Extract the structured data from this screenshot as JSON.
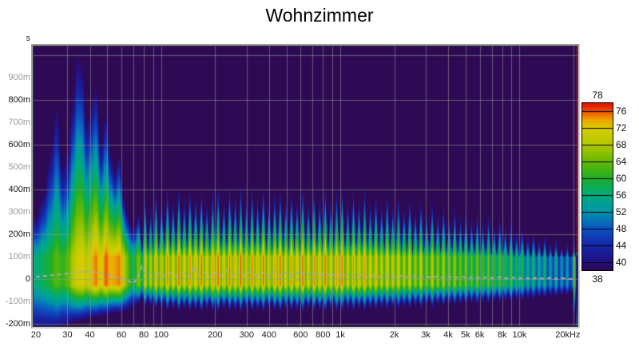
{
  "chart_data": {
    "type": "heatmap",
    "subtype": "spectrogram",
    "title": "Wohnzimmer",
    "x_axis": {
      "scale": "log",
      "unit": "Hz",
      "min_hz": 20,
      "max_hz": 20000,
      "ticks": [
        {
          "label": "20",
          "f": 20
        },
        {
          "label": "30",
          "f": 30
        },
        {
          "label": "40",
          "f": 40
        },
        {
          "label": "60",
          "f": 60
        },
        {
          "label": "80",
          "f": 80
        },
        {
          "label": "100",
          "f": 100
        },
        {
          "label": "200",
          "f": 200
        },
        {
          "label": "300",
          "f": 300
        },
        {
          "label": "400",
          "f": 400
        },
        {
          "label": "600",
          "f": 600
        },
        {
          "label": "800",
          "f": 800
        },
        {
          "label": "1k",
          "f": 1000
        },
        {
          "label": "2k",
          "f": 2000
        },
        {
          "label": "3k",
          "f": 3000
        },
        {
          "label": "4k",
          "f": 4000
        },
        {
          "label": "5k",
          "f": 5000
        },
        {
          "label": "6k",
          "f": 6000
        },
        {
          "label": "8k",
          "f": 8000
        },
        {
          "label": "10k",
          "f": 10000
        },
        {
          "label": "20kHz",
          "f": 20000
        }
      ],
      "gridlines_hz": [
        30,
        40,
        50,
        60,
        70,
        80,
        90,
        100,
        200,
        300,
        400,
        500,
        600,
        700,
        800,
        900,
        1000,
        2000,
        3000,
        4000,
        5000,
        6000,
        7000,
        8000,
        9000,
        10000,
        20000
      ]
    },
    "y_axis": {
      "unit_label": "s",
      "min_ms": -210,
      "max_ms": 1040,
      "ticks": [
        {
          "label": "900m",
          "t": 900,
          "major": false
        },
        {
          "label": "800m",
          "t": 800,
          "major": true
        },
        {
          "label": "700m",
          "t": 700,
          "major": false
        },
        {
          "label": "600m",
          "t": 600,
          "major": true
        },
        {
          "label": "500m",
          "t": 500,
          "major": false
        },
        {
          "label": "400m",
          "t": 400,
          "major": true
        },
        {
          "label": "300m",
          "t": 300,
          "major": false
        },
        {
          "label": "200m",
          "t": 200,
          "major": true
        },
        {
          "label": "100m",
          "t": 100,
          "major": false
        },
        {
          "label": "0",
          "t": 0,
          "major": true
        },
        {
          "label": "-100m",
          "t": -100,
          "major": false
        },
        {
          "label": "-200m",
          "t": -200,
          "major": true
        }
      ],
      "gridlines_ms": [
        1000,
        800,
        600,
        400,
        200,
        0,
        -200
      ]
    },
    "colorbar": {
      "unit": "dB",
      "min_db": 38,
      "max_db": 78,
      "top_label": "78",
      "bottom_label": "38",
      "side_ticks": [
        {
          "label": "76",
          "db": 76
        },
        {
          "label": "72",
          "db": 72
        },
        {
          "label": "68",
          "db": 68
        },
        {
          "label": "64",
          "db": 64
        },
        {
          "label": "60",
          "db": 60
        },
        {
          "label": "56",
          "db": 56
        },
        {
          "label": "52",
          "db": 52
        },
        {
          "label": "48",
          "db": 48
        },
        {
          "label": "44",
          "db": 44
        },
        {
          "label": "40",
          "db": 40
        }
      ]
    },
    "colors": {
      "background": "#2e0a54",
      "grid": "rgba(150,158,138,0.55)",
      "peak_line": "#a9a9a9",
      "palette_stops": [
        [
          38,
          "#2e0a54"
        ],
        [
          40,
          "#241081"
        ],
        [
          44,
          "#1527a8"
        ],
        [
          48,
          "#0d55c2"
        ],
        [
          52,
          "#0095aa"
        ],
        [
          56,
          "#00ab7c"
        ],
        [
          60,
          "#1fae2a"
        ],
        [
          64,
          "#69b900"
        ],
        [
          68,
          "#afc900"
        ],
        [
          72,
          "#d9cc00"
        ],
        [
          74,
          "#eda400"
        ],
        [
          76,
          "#f25200"
        ],
        [
          78,
          "#dc0e00"
        ]
      ]
    },
    "render_params": {
      "hot_top_ms": 100,
      "hot_bottom_ms": -25,
      "grass_from_hz": 72,
      "valley_up_ratio": 0.42,
      "valley_db_drop": 10,
      "valley_down_ratio": 0.72
    },
    "bins": [
      [
        20,
        56,
        280,
        240
      ],
      [
        22,
        58,
        380,
        235
      ],
      [
        24,
        60,
        560,
        230
      ],
      [
        26,
        63,
        780,
        225
      ],
      [
        28,
        61,
        500,
        215
      ],
      [
        30,
        63,
        560,
        205
      ],
      [
        32,
        68,
        800,
        195
      ],
      [
        34,
        71,
        1010,
        190
      ],
      [
        36,
        72,
        960,
        185
      ],
      [
        38,
        69,
        700,
        180
      ],
      [
        40,
        72,
        760,
        175
      ],
      [
        43,
        75,
        870,
        170
      ],
      [
        46,
        71,
        600,
        165
      ],
      [
        49,
        76,
        740,
        160
      ],
      [
        52,
        73,
        560,
        155
      ],
      [
        55,
        74,
        480,
        150
      ],
      [
        58,
        75,
        560,
        150
      ],
      [
        61,
        70,
        380,
        145
      ],
      [
        64,
        65,
        300,
        140
      ],
      [
        67,
        60,
        250,
        130
      ],
      [
        70,
        58,
        220,
        120
      ],
      [
        75,
        66,
        300,
        110
      ],
      [
        81,
        73,
        390,
        130
      ],
      [
        87,
        70,
        330,
        125
      ],
      [
        93,
        75,
        420,
        140
      ],
      [
        100,
        72,
        360,
        135
      ],
      [
        108,
        76,
        430,
        150
      ],
      [
        116,
        73,
        370,
        140
      ],
      [
        125,
        77,
        440,
        155
      ],
      [
        134,
        73,
        380,
        140
      ],
      [
        144,
        76,
        430,
        150
      ],
      [
        155,
        74,
        390,
        145
      ],
      [
        167,
        77,
        420,
        155
      ],
      [
        179,
        73,
        360,
        140
      ],
      [
        193,
        75,
        410,
        150
      ],
      [
        207,
        77,
        440,
        155
      ],
      [
        223,
        73,
        370,
        140
      ],
      [
        240,
        76,
        430,
        150
      ],
      [
        258,
        74,
        390,
        145
      ],
      [
        277,
        77,
        430,
        155
      ],
      [
        298,
        73,
        370,
        140
      ],
      [
        320,
        76,
        420,
        150
      ],
      [
        344,
        74,
        380,
        145
      ],
      [
        370,
        77,
        440,
        155
      ],
      [
        398,
        73,
        370,
        140
      ],
      [
        428,
        75,
        410,
        150
      ],
      [
        460,
        77,
        430,
        155
      ],
      [
        494,
        73,
        370,
        140
      ],
      [
        531,
        76,
        420,
        150
      ],
      [
        571,
        74,
        380,
        145
      ],
      [
        614,
        77,
        440,
        155
      ],
      [
        660,
        73,
        370,
        140
      ],
      [
        710,
        76,
        420,
        150
      ],
      [
        763,
        74,
        380,
        145
      ],
      [
        820,
        77,
        430,
        155
      ],
      [
        882,
        73,
        370,
        140
      ],
      [
        948,
        75,
        410,
        150
      ],
      [
        1019,
        76,
        430,
        150
      ],
      [
        1096,
        72,
        360,
        140
      ],
      [
        1178,
        75,
        410,
        148
      ],
      [
        1266,
        73,
        370,
        140
      ],
      [
        1361,
        75,
        420,
        150
      ],
      [
        1463,
        72,
        360,
        138
      ],
      [
        1573,
        74,
        400,
        145
      ],
      [
        1691,
        71,
        350,
        135
      ],
      [
        1818,
        74,
        410,
        145
      ],
      [
        1954,
        71,
        350,
        135
      ],
      [
        2101,
        73,
        400,
        142
      ],
      [
        2258,
        70,
        340,
        132
      ],
      [
        2428,
        73,
        390,
        140
      ],
      [
        2610,
        69,
        330,
        128
      ],
      [
        2806,
        72,
        380,
        138
      ],
      [
        3016,
        68,
        320,
        125
      ],
      [
        3242,
        71,
        370,
        135
      ],
      [
        3485,
        68,
        310,
        122
      ],
      [
        3747,
        70,
        350,
        130
      ],
      [
        4028,
        67,
        300,
        118
      ],
      [
        4330,
        69,
        340,
        126
      ],
      [
        4655,
        66,
        290,
        115
      ],
      [
        5004,
        68,
        330,
        122
      ],
      [
        5379,
        65,
        280,
        112
      ],
      [
        5783,
        67,
        310,
        118
      ],
      [
        6216,
        64,
        270,
        108
      ],
      [
        6683,
        66,
        300,
        114
      ],
      [
        7184,
        63,
        260,
        105
      ],
      [
        7723,
        65,
        290,
        110
      ],
      [
        8302,
        62,
        250,
        102
      ],
      [
        8925,
        64,
        270,
        106
      ],
      [
        9594,
        60,
        230,
        98
      ],
      [
        10314,
        62,
        250,
        100
      ],
      [
        11088,
        58,
        210,
        92
      ],
      [
        11919,
        60,
        230,
        95
      ],
      [
        12813,
        57,
        195,
        88
      ],
      [
        13774,
        59,
        215,
        90
      ],
      [
        14807,
        55,
        175,
        82
      ],
      [
        15918,
        57,
        190,
        85
      ],
      [
        17112,
        54,
        160,
        78
      ],
      [
        18395,
        55,
        170,
        75
      ],
      [
        19775,
        53,
        140,
        70
      ],
      [
        20000,
        74,
        170,
        200
      ],
      [
        21600,
        45,
        60,
        60
      ]
    ],
    "peak_time_line_ms": [
      [
        20,
        10
      ],
      [
        24,
        16
      ],
      [
        28,
        22
      ],
      [
        33,
        30
      ],
      [
        38,
        33
      ],
      [
        44,
        30
      ],
      [
        50,
        22
      ],
      [
        55,
        12
      ],
      [
        60,
        4
      ],
      [
        65,
        -8
      ],
      [
        70,
        -20
      ],
      [
        74,
        8
      ],
      [
        78,
        56
      ],
      [
        82,
        28
      ],
      [
        88,
        16
      ],
      [
        95,
        26
      ],
      [
        103,
        14
      ],
      [
        112,
        28
      ],
      [
        122,
        12
      ],
      [
        132,
        26
      ],
      [
        145,
        14
      ],
      [
        152,
        58
      ],
      [
        160,
        18
      ],
      [
        172,
        34
      ],
      [
        186,
        12
      ],
      [
        200,
        30
      ],
      [
        215,
        14
      ],
      [
        232,
        38
      ],
      [
        250,
        16
      ],
      [
        270,
        32
      ],
      [
        292,
        12
      ],
      [
        315,
        34
      ],
      [
        340,
        14
      ],
      [
        368,
        30
      ],
      [
        398,
        12
      ],
      [
        430,
        34
      ],
      [
        465,
        14
      ],
      [
        503,
        30
      ],
      [
        545,
        12
      ],
      [
        590,
        36
      ],
      [
        640,
        14
      ],
      [
        695,
        30
      ],
      [
        752,
        12
      ],
      [
        815,
        28
      ],
      [
        882,
        12
      ],
      [
        955,
        24
      ],
      [
        1035,
        10
      ],
      [
        1120,
        22
      ],
      [
        1215,
        10
      ],
      [
        1320,
        20
      ],
      [
        1430,
        8
      ],
      [
        1550,
        18
      ],
      [
        1680,
        8
      ],
      [
        1820,
        16
      ],
      [
        1975,
        7
      ],
      [
        2140,
        15
      ],
      [
        2320,
        7
      ],
      [
        2515,
        14
      ],
      [
        2725,
        6
      ],
      [
        2955,
        13
      ],
      [
        3200,
        6
      ],
      [
        3470,
        12
      ],
      [
        3760,
        5
      ],
      [
        4075,
        11
      ],
      [
        4420,
        5
      ],
      [
        4790,
        10
      ],
      [
        5190,
        4
      ],
      [
        5625,
        9
      ],
      [
        6100,
        4
      ],
      [
        6610,
        8
      ],
      [
        7160,
        3
      ],
      [
        7760,
        8
      ],
      [
        8410,
        3
      ],
      [
        9115,
        7
      ],
      [
        9880,
        2
      ],
      [
        10710,
        6
      ],
      [
        11610,
        2
      ],
      [
        12580,
        5
      ],
      [
        13630,
        2
      ],
      [
        14780,
        5
      ],
      [
        16020,
        1
      ],
      [
        17360,
        4
      ],
      [
        18810,
        1
      ],
      [
        20000,
        0
      ]
    ]
  }
}
